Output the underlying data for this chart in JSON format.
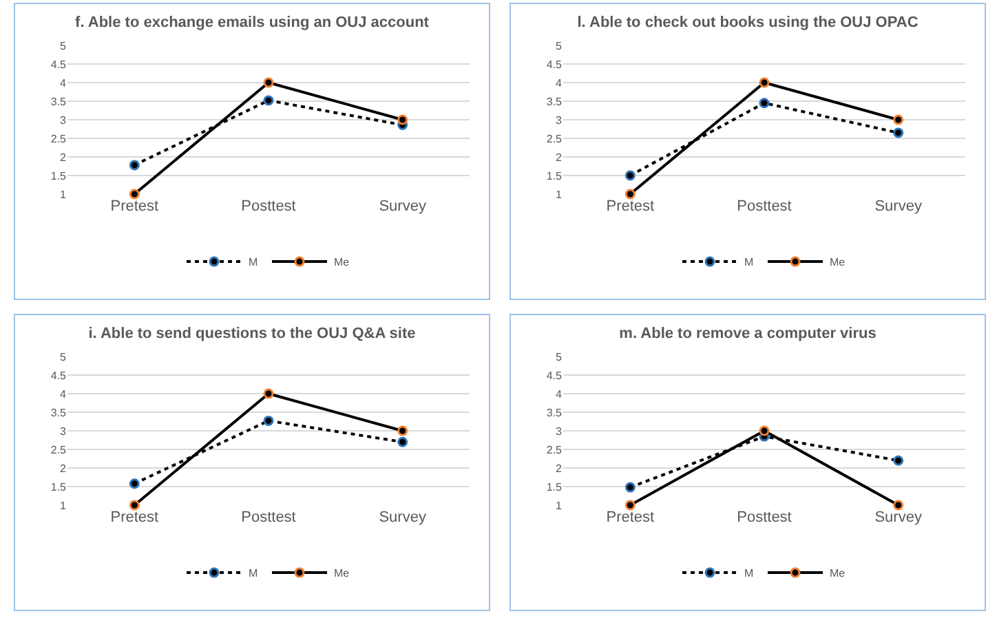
{
  "chart_data": [
    {
      "type": "line",
      "title": "f. Able to exchange emails using an OUJ account",
      "categories": [
        "Pretest",
        "Posttest",
        "Survey"
      ],
      "ylim": [
        1,
        5
      ],
      "yticks": [
        1,
        1.5,
        2,
        2.5,
        3,
        3.5,
        4,
        4.5,
        5
      ],
      "grid": "y",
      "legend": "bottom",
      "marker": "circle",
      "series": [
        {
          "name": "M",
          "color": "#000000",
          "line_style": "dotted",
          "values": [
            1.78,
            3.52,
            2.86
          ]
        },
        {
          "name": "Me",
          "color": "#000000",
          "line_style": "solid",
          "values": [
            1,
            4,
            3
          ]
        }
      ]
    },
    {
      "type": "line",
      "title": "l. Able to check out books using the OUJ OPAC",
      "categories": [
        "Pretest",
        "Posttest",
        "Survey"
      ],
      "ylim": [
        1,
        5
      ],
      "yticks": [
        1,
        1.5,
        2,
        2.5,
        3,
        3.5,
        4,
        4.5,
        5
      ],
      "grid": "y",
      "legend": "bottom",
      "marker": "circle",
      "series": [
        {
          "name": "M",
          "color": "#000000",
          "line_style": "dotted",
          "values": [
            1.5,
            3.45,
            2.65
          ]
        },
        {
          "name": "Me",
          "color": "#000000",
          "line_style": "solid",
          "values": [
            1,
            4,
            3
          ]
        }
      ]
    },
    {
      "type": "line",
      "title": "i. Able to send questions to the OUJ Q&A site",
      "categories": [
        "Pretest",
        "Posttest",
        "Survey"
      ],
      "ylim": [
        1,
        5
      ],
      "yticks": [
        1,
        1.5,
        2,
        2.5,
        3,
        3.5,
        4,
        4.5,
        5
      ],
      "grid": "y",
      "legend": "bottom",
      "marker": "circle",
      "series": [
        {
          "name": "M",
          "color": "#000000",
          "line_style": "dotted",
          "values": [
            1.58,
            3.27,
            2.7
          ]
        },
        {
          "name": "Me",
          "color": "#000000",
          "line_style": "solid",
          "values": [
            1,
            4,
            3
          ]
        }
      ]
    },
    {
      "type": "line",
      "title": "m. Able to remove a computer virus",
      "categories": [
        "Pretest",
        "Posttest",
        "Survey"
      ],
      "ylim": [
        1,
        5
      ],
      "yticks": [
        1,
        1.5,
        2,
        2.5,
        3,
        3.5,
        4,
        4.5,
        5
      ],
      "grid": "y",
      "legend": "bottom",
      "marker": "circle",
      "series": [
        {
          "name": "M",
          "color": "#000000",
          "line_style": "dotted",
          "values": [
            1.48,
            2.85,
            2.2
          ]
        },
        {
          "name": "Me",
          "color": "#000000",
          "line_style": "solid",
          "values": [
            1,
            3,
            1
          ]
        }
      ]
    }
  ]
}
